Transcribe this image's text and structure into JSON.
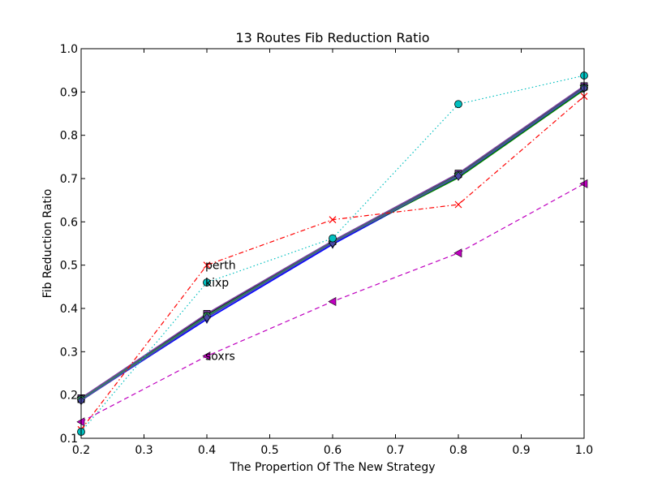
{
  "chart_data": {
    "type": "line",
    "title": "13 Routes Fib Reduction Ratio",
    "xlabel": "The Propertion Of The New Strategy",
    "ylabel": "Fib Reduction Ratio",
    "xlim": [
      0.2,
      1.0
    ],
    "ylim": [
      0.1,
      1.0
    ],
    "xticks": [
      "0.2",
      "0.3",
      "0.4",
      "0.5",
      "0.6",
      "0.7",
      "0.8",
      "0.9",
      "1.0"
    ],
    "yticks": [
      "0.1",
      "0.2",
      "0.3",
      "0.4",
      "0.5",
      "0.6",
      "0.7",
      "0.8",
      "0.9",
      "1.0"
    ],
    "x": [
      0.2,
      0.4,
      0.6,
      0.8,
      1.0
    ],
    "grid": false,
    "series": [
      {
        "color": "#ff0000",
        "style": "dashdot",
        "marker": "x",
        "values": [
          0.12,
          0.5,
          0.605,
          0.64,
          0.89
        ]
      },
      {
        "color": "#00bfbf",
        "style": "dotted",
        "marker": "circle",
        "values": [
          0.115,
          0.46,
          0.562,
          0.872,
          0.938
        ]
      },
      {
        "color": "#bf00bf",
        "style": "dashed",
        "marker": "triangle-left",
        "values": [
          0.138,
          0.29,
          0.416,
          0.528,
          0.688
        ]
      },
      {
        "color": "#000000",
        "style": "solid",
        "marker": "square",
        "values": [
          0.19,
          0.385,
          0.555,
          0.71,
          0.912
        ]
      },
      {
        "color": "#0000ff",
        "style": "solid",
        "marker": "triangle-down",
        "values": [
          0.188,
          0.375,
          0.548,
          0.705,
          0.908
        ]
      },
      {
        "color": "#008000",
        "style": "solid",
        "marker": "none",
        "values": [
          0.192,
          0.38,
          0.552,
          0.702,
          0.905
        ]
      },
      {
        "color": "#7a3fa0",
        "style": "solid",
        "marker": "square",
        "values": [
          0.193,
          0.388,
          0.556,
          0.712,
          0.914
        ]
      },
      {
        "color": "#2e8b57",
        "style": "solid",
        "marker": "circle",
        "values": [
          0.19,
          0.383,
          0.553,
          0.708,
          0.91
        ]
      },
      {
        "color": "#4a4aa8",
        "style": "solid",
        "marker": "diamond",
        "values": [
          0.187,
          0.379,
          0.551,
          0.706,
          0.909
        ]
      }
    ],
    "annotations": [
      {
        "text": "perth",
        "x": 0.4,
        "y": 0.5
      },
      {
        "text": "kixp",
        "x": 0.4,
        "y": 0.46
      },
      {
        "text": "soxrs",
        "x": 0.4,
        "y": 0.29
      }
    ]
  }
}
